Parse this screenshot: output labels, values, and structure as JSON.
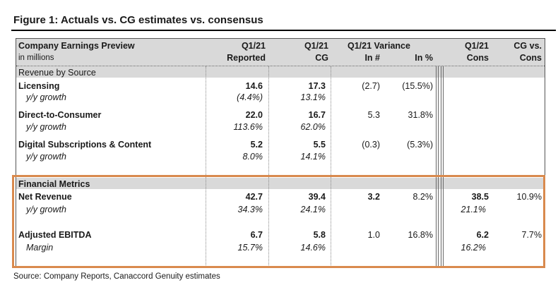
{
  "figure": {
    "title": "Figure 1: Actuals vs. CG estimates vs. consensus",
    "source": "Source: Company Reports, Canaccord Genuity estimates"
  },
  "header": {
    "row_label": "Company Earnings Preview",
    "row_sublabel": "in millions",
    "col1_line1": "Q1/21",
    "col1_line2": "Reported",
    "col2_line1": "Q1/21",
    "col2_line2": "CG",
    "variance_title": "Q1/21 Variance",
    "variance_num": "In #",
    "variance_pct": "In %",
    "col5_line1": "Q1/21",
    "col5_line2": "Cons",
    "col6_line1": "CG vs.",
    "col6_line2": "Cons"
  },
  "revenue": {
    "section_label": "Revenue by Source",
    "rows": [
      {
        "label": "Licensing",
        "reported": "14.6",
        "cg": "17.3",
        "var_num": "(2.7)",
        "var_pct": "(15.5%)",
        "sub_label": "y/y growth",
        "sub_reported": "(4.4%)",
        "sub_cg": "13.1%"
      },
      {
        "label": "Direct-to-Consumer",
        "reported": "22.0",
        "cg": "16.7",
        "var_num": "5.3",
        "var_pct": "31.8%",
        "sub_label": "y/y growth",
        "sub_reported": "113.6%",
        "sub_cg": "62.0%"
      },
      {
        "label": "Digital Subscriptions & Content",
        "reported": "5.2",
        "cg": "5.5",
        "var_num": "(0.3)",
        "var_pct": "(5.3%)",
        "sub_label": "y/y growth",
        "sub_reported": "8.0%",
        "sub_cg": "14.1%"
      }
    ]
  },
  "financial": {
    "section_label": "Financial Metrics",
    "rows": [
      {
        "label": "Net Revenue",
        "reported": "42.7",
        "cg": "39.4",
        "var_num": "3.2",
        "var_pct": "8.2%",
        "cons": "38.5",
        "cg_vs_cons": "10.9%",
        "sub_label": "y/y growth",
        "sub_reported": "34.3%",
        "sub_cg": "24.1%",
        "sub_cons": "21.1%"
      },
      {
        "label": "Adjusted EBITDA",
        "reported": "6.7",
        "cg": "5.8",
        "var_num": "1.0",
        "var_pct": "16.8%",
        "cons": "6.2",
        "cg_vs_cons": "7.7%",
        "sub_label": "Margin",
        "sub_reported": "15.7%",
        "sub_cg": "14.6%",
        "sub_cons": "16.2%"
      }
    ]
  },
  "colors": {
    "highlight": "#d98a4e",
    "header_band": "#d9d9d9"
  }
}
